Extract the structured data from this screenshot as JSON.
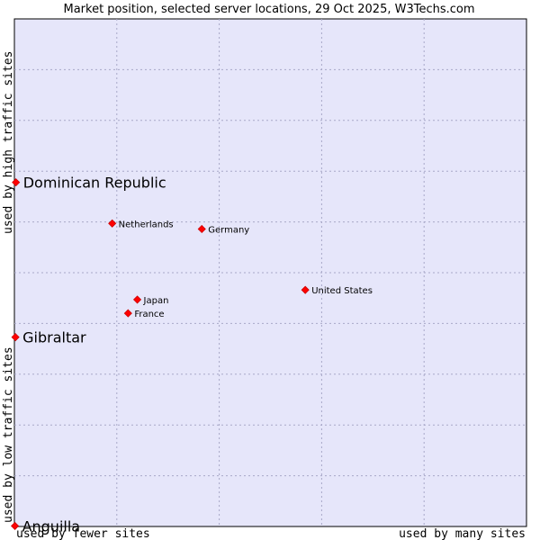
{
  "chart_data": {
    "type": "scatter",
    "title": "Market position, selected server locations, 29 Oct 2025, W3Techs.com",
    "xlabel_left": "used by fewer sites",
    "xlabel_right": "used by many sites",
    "ylabel_top": "used by high traffic sites",
    "ylabel_bottom": "used by low traffic sites",
    "xlim": [
      0,
      100
    ],
    "ylim": [
      0,
      100
    ],
    "grid": true,
    "colors": {
      "plot_bg": "#e6e6fa",
      "marker": "#ff0000",
      "marker_edge": "#cc0000",
      "grid": "#a8a8c8"
    },
    "points": [
      {
        "label": "Dominican Republic",
        "x": 0.3,
        "y": 67.8,
        "emphasis": true
      },
      {
        "label": "Netherlands",
        "x": 19.1,
        "y": 59.7,
        "emphasis": false
      },
      {
        "label": "Germany",
        "x": 36.6,
        "y": 58.6,
        "emphasis": false
      },
      {
        "label": "United States",
        "x": 56.8,
        "y": 46.6,
        "emphasis": false
      },
      {
        "label": "Japan",
        "x": 24.0,
        "y": 44.7,
        "emphasis": false
      },
      {
        "label": "France",
        "x": 22.2,
        "y": 42.0,
        "emphasis": false
      },
      {
        "label": "Gibraltar",
        "x": 0.2,
        "y": 37.3,
        "emphasis": true
      },
      {
        "label": "Anguilla",
        "x": 0.1,
        "y": 0.1,
        "emphasis": true
      }
    ]
  }
}
